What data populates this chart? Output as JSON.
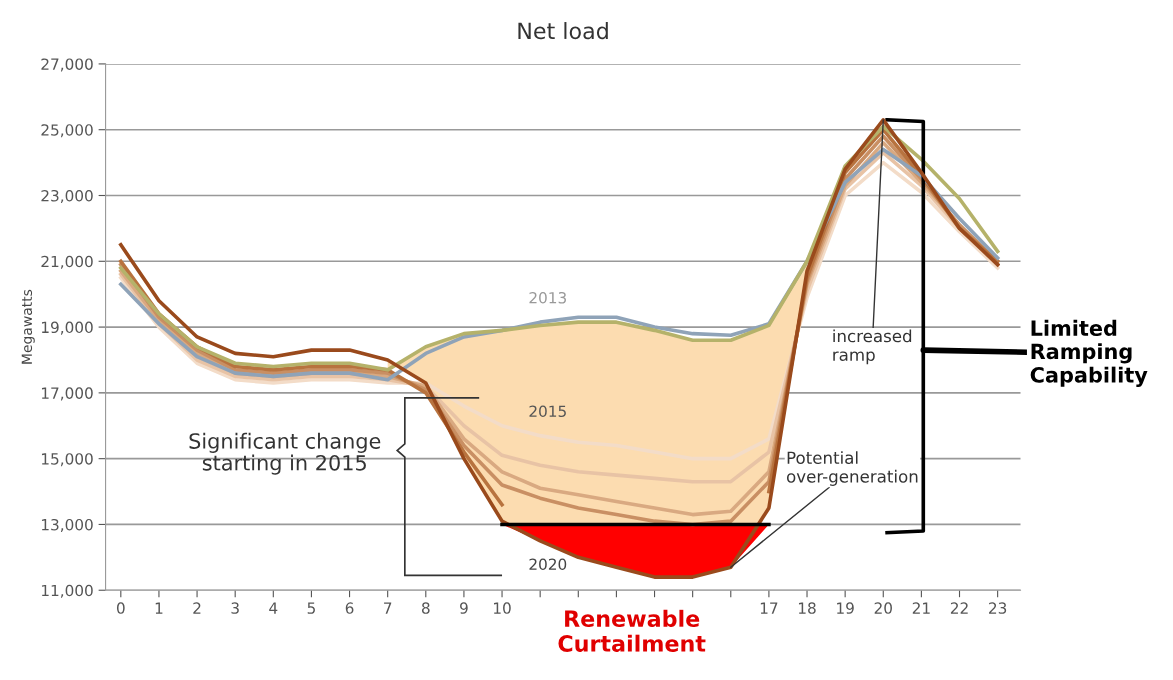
{
  "chart_data": {
    "type": "line",
    "title": "Net load",
    "ylabel": "Megawatts",
    "x": [
      0,
      1,
      2,
      3,
      4,
      5,
      6,
      7,
      8,
      9,
      10,
      11,
      12,
      13,
      14,
      15,
      16,
      17,
      18,
      19,
      20,
      21,
      22,
      23
    ],
    "xlim": [
      -0.4,
      23.6
    ],
    "ylim": [
      11000,
      27000
    ],
    "xticks": [
      0,
      1,
      2,
      3,
      4,
      5,
      6,
      7,
      8,
      9,
      10,
      {
        "value": 11,
        "label": null
      },
      {
        "value": 12,
        "label": null
      },
      {
        "value": 13,
        "label": null
      },
      {
        "value": 14,
        "label": null
      },
      {
        "value": 15,
        "label": null
      },
      {
        "value": 16,
        "label": null
      },
      17,
      18,
      19,
      20,
      21,
      22,
      23
    ],
    "yticks": [
      {
        "value": 11000,
        "label": "11,000"
      },
      {
        "value": 13000,
        "label": "13,000"
      },
      {
        "value": 15000,
        "label": "15,000"
      },
      {
        "value": 17000,
        "label": "17,000"
      },
      {
        "value": 19000,
        "label": "19,000"
      },
      {
        "value": 21000,
        "label": "21,000"
      },
      {
        "value": 23000,
        "label": "23,000"
      },
      {
        "value": 25000,
        "label": "25,000"
      },
      {
        "value": 27000,
        "label": "27,000"
      }
    ],
    "grid": "y",
    "series": [
      {
        "name": "2015",
        "color": "#f3dcc8",
        "values": [
          20500,
          19000,
          17900,
          17400,
          17300,
          17400,
          17400,
          17300,
          17300,
          16600,
          16000,
          15700,
          15500,
          15400,
          15200,
          15000,
          15000,
          15600,
          19900,
          23000,
          24000,
          23100,
          21900,
          20800
        ]
      },
      {
        "color": "#e8c3a5",
        "values": [
          20600,
          19100,
          18000,
          17500,
          17400,
          17500,
          17500,
          17400,
          17200,
          16000,
          15100,
          14800,
          14600,
          14500,
          14400,
          14300,
          14300,
          15200,
          20100,
          23200,
          24300,
          23300,
          22000,
          20900
        ]
      },
      {
        "color": "#d9a981",
        "values": [
          20700,
          19200,
          18200,
          17600,
          17500,
          17600,
          17600,
          17500,
          17200,
          15600,
          14600,
          14100,
          13900,
          13700,
          13500,
          13300,
          13400,
          14600,
          20300,
          23300,
          24600,
          23400,
          22100,
          20900
        ]
      },
      {
        "color": "#c98f63",
        "values": [
          20900,
          19300,
          18300,
          17700,
          17600,
          17700,
          17700,
          17600,
          17100,
          15400,
          14200,
          13800,
          13500,
          13300,
          13100,
          13000,
          13100,
          14300,
          20400,
          23500,
          24800,
          23500,
          22100,
          21000
        ]
      },
      {
        "color": "#b8733f",
        "values": [
          21000,
          19400,
          18400,
          17800,
          17700,
          17800,
          17800,
          17700,
          17000,
          15200,
          13600,
          null,
          null,
          null,
          null,
          null,
          null,
          14000,
          20500,
          23700,
          25000,
          23600,
          22000,
          21000
        ]
      },
      {
        "name": "2013",
        "color": "#8fa3b8",
        "values": [
          20300,
          19100,
          18100,
          17600,
          17500,
          17600,
          17600,
          17400,
          18200,
          18700,
          18900,
          19150,
          19300,
          19300,
          19000,
          18800,
          18750,
          19100,
          21000,
          23400,
          24400,
          23600,
          22300,
          21100
        ]
      },
      {
        "color": "#b5b26a",
        "values": [
          20800,
          19400,
          18400,
          17900,
          17800,
          17900,
          17900,
          17700,
          18400,
          18800,
          18900,
          19050,
          19150,
          19150,
          18900,
          18600,
          18600,
          19050,
          21000,
          23900,
          25100,
          24100,
          22900,
          21300
        ]
      },
      {
        "color": "#000000",
        "x": [
          20.1,
          21.05,
          21.05,
          20.1
        ],
        "values": [
          25300,
          25250,
          12800,
          12750
        ]
      },
      {
        "name": "2020",
        "color": "#9a4a1c",
        "values": [
          21500,
          19800,
          18700,
          18200,
          18100,
          18300,
          18300,
          18000,
          17300,
          15000,
          13100,
          12500,
          12000,
          11700,
          11400,
          11400,
          11700,
          13500,
          20700,
          23800,
          25300,
          23700,
          22000,
          20900
        ],
        "lower": [
          null,
          null,
          null,
          null,
          null,
          null,
          null,
          18000,
          17300,
          15000,
          13100,
          12500,
          12000,
          11700,
          11400,
          11400,
          11700,
          13500,
          20700,
          null,
          null,
          null,
          null,
          null
        ],
        "upper": [
          null,
          null,
          null,
          null,
          null,
          null,
          null,
          17700,
          18400,
          18800,
          18900,
          19050,
          19150,
          19150,
          18900,
          18600,
          18600,
          19050,
          21000,
          null,
          null,
          null,
          null,
          null
        ]
      },
      {
        "color": "#000000",
        "x": [
          10,
          11,
          12,
          13,
          14,
          15,
          16,
          17
        ],
        "values": [
          13000,
          13000,
          13000,
          13000,
          13000,
          13000,
          13000,
          13000
        ],
        "lower": [
          13000,
          12500,
          12000,
          11700,
          11400,
          11400,
          11700,
          13000
        ],
        "upper": [
          13000,
          13000,
          13000,
          13000,
          13000,
          13000,
          13000,
          13000
        ]
      }
    ],
    "annotations": [
      "Significant change\nstarting in 2015",
      {
        "text": "increased\nramp",
        "x": 20,
        "y": 25300
      },
      {
        "text": "Potential\nover-generation",
        "x": 16,
        "y": 11700
      },
      "Limited\nRamping\nCapability",
      "Renewable\nCurtailment"
    ]
  }
}
